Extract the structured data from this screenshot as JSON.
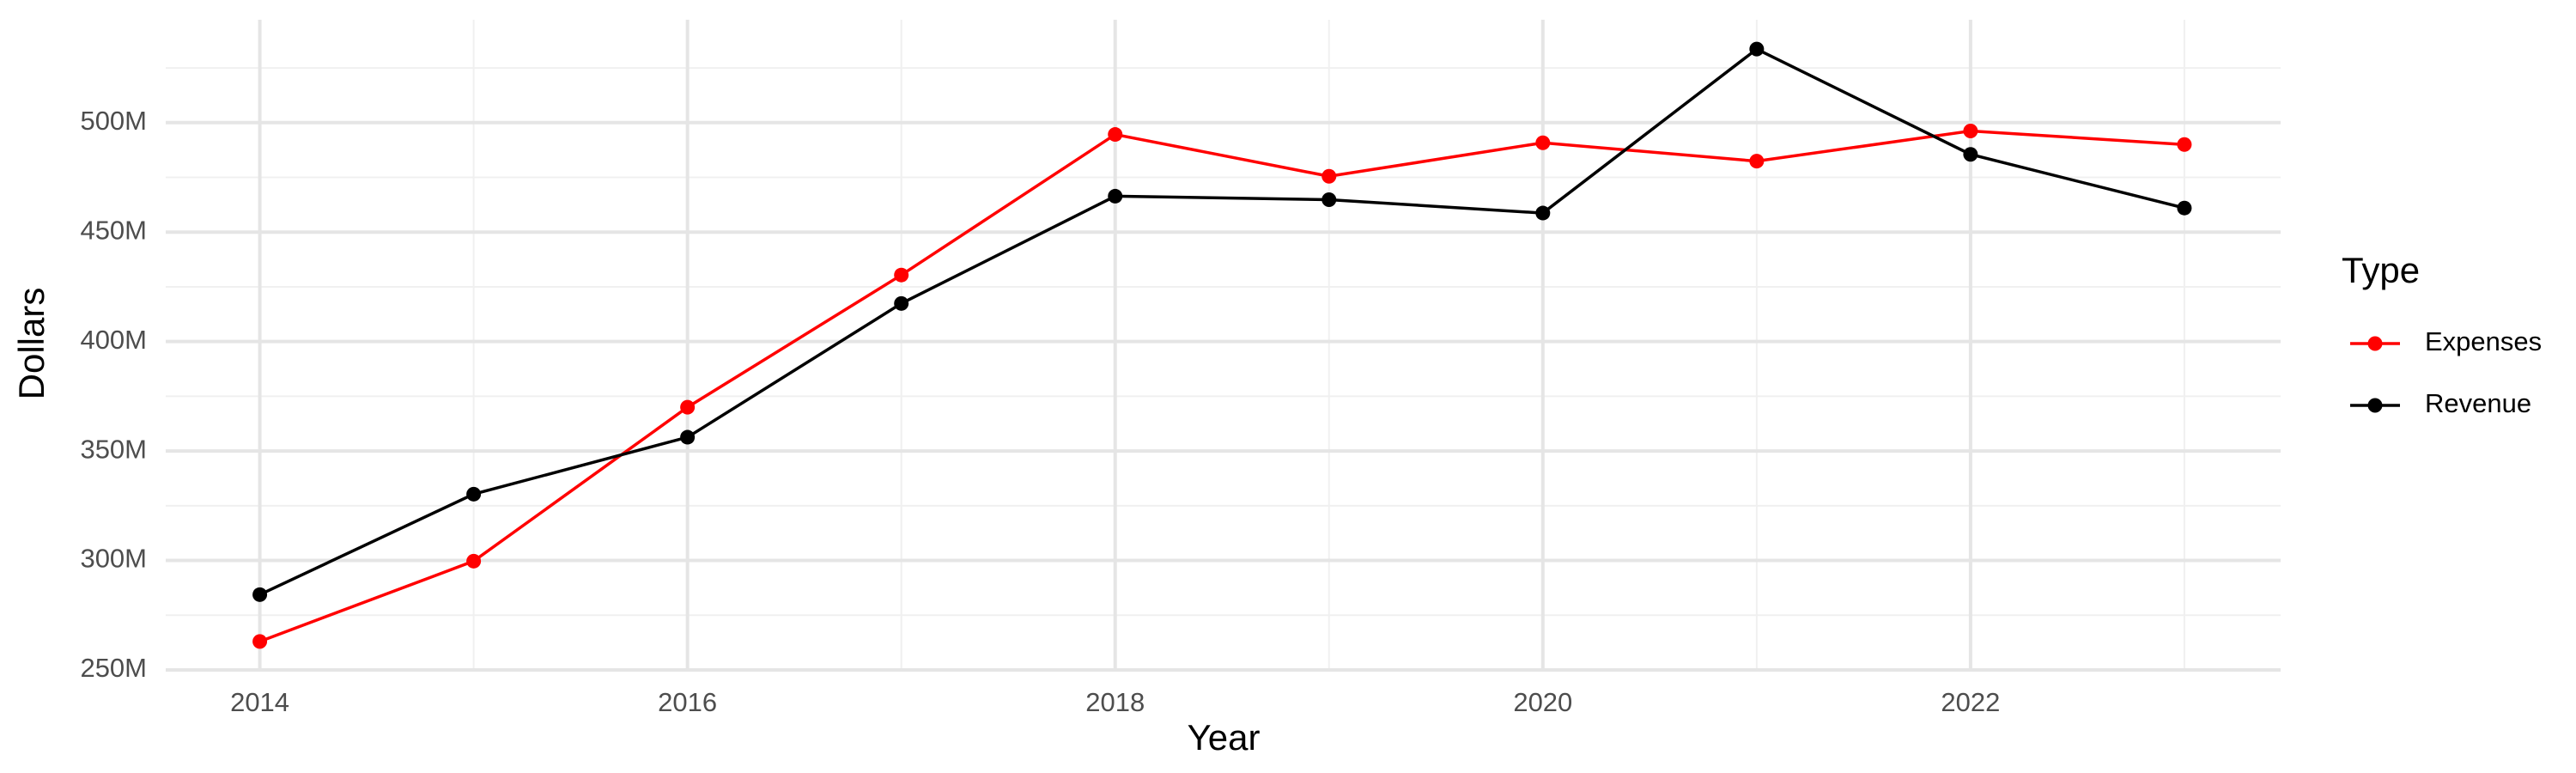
{
  "chart_data": {
    "type": "line",
    "x_label": "Year",
    "y_label": "Dollars",
    "legend_title": "Type",
    "legend_position": "right",
    "x": [
      2014,
      2015,
      2016,
      2017,
      2018,
      2019,
      2020,
      2021,
      2022,
      2023
    ],
    "series": [
      {
        "name": "Expenses",
        "color": "#ff0000",
        "values": [
          263000000,
          299700000,
          370000000,
          430400000,
          494600000,
          475500000,
          490800000,
          482400000,
          496200000,
          490000000
        ]
      },
      {
        "name": "Revenue",
        "color": "#000000",
        "values": [
          284400000,
          330300000,
          356300000,
          417400000,
          466400000,
          464800000,
          458700000,
          533600000,
          485500000,
          461000000
        ]
      }
    ],
    "xlim": [
      2013.56,
      2023.45
    ],
    "xticks": [
      2014,
      2016,
      2018,
      2020,
      2022
    ],
    "x_minor_grid": [
      2015,
      2017,
      2019,
      2021,
      2023
    ],
    "ylim": [
      250000000,
      547000000
    ],
    "yticks": [
      {
        "value": 250000000,
        "label": "250M"
      },
      {
        "value": 300000000,
        "label": "300M"
      },
      {
        "value": 350000000,
        "label": "350M"
      },
      {
        "value": 400000000,
        "label": "400M"
      },
      {
        "value": 450000000,
        "label": "450M"
      },
      {
        "value": 500000000,
        "label": "500M"
      }
    ],
    "y_minor_grid": [
      275000000,
      325000000,
      375000000,
      425000000,
      475000000,
      525000000
    ],
    "grid": true
  }
}
